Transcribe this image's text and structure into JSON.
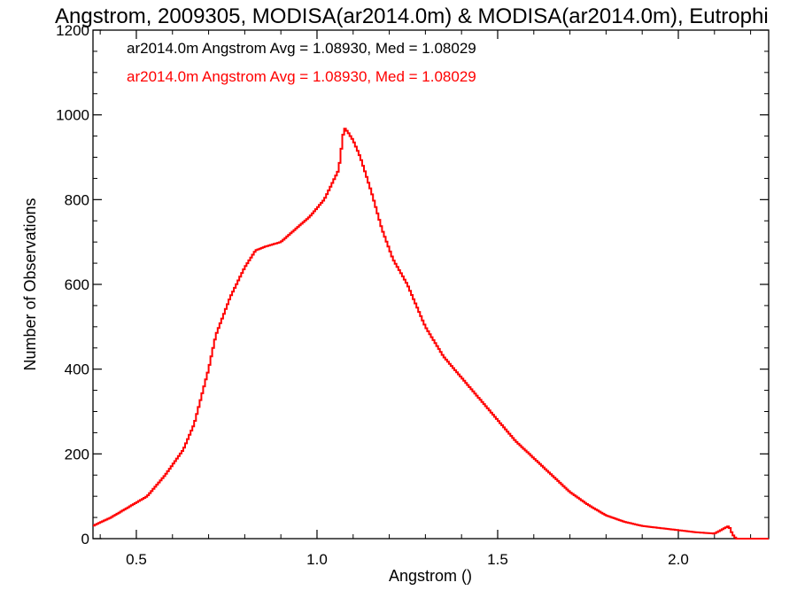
{
  "chart_data": {
    "type": "histogram",
    "title": "Angstrom, 2009305, MODISA(ar2014.0m) & MODISA(ar2014.0m), Eutrophi",
    "xlabel": "Angstrom ()",
    "ylabel": "Number of Observations",
    "xlim": [
      0.38,
      2.25
    ],
    "ylim": [
      0,
      1200
    ],
    "xticks": [
      0.5,
      1.0,
      1.5,
      2.0
    ],
    "xtick_labels": [
      "0.5",
      "1.0",
      "1.5",
      "2.0"
    ],
    "yticks": [
      0,
      200,
      400,
      600,
      800,
      1000,
      1200
    ],
    "ytick_labels": [
      "0",
      "200",
      "400",
      "600",
      "800",
      "1000",
      "1200"
    ],
    "legend": [
      {
        "text": "ar2014.0m Angstrom Avg = 1.08930, Med = 1.08029",
        "color": "#000000"
      },
      {
        "text": "ar2014.0m Angstrom Avg = 1.08930, Med = 1.08029",
        "color": "#ff0000"
      }
    ],
    "series": [
      {
        "color": "#ff0000",
        "bin_width": 0.01,
        "x": [
          0.38,
          0.43,
          0.48,
          0.53,
          0.58,
          0.63,
          0.66,
          0.7,
          0.72,
          0.76,
          0.8,
          0.83,
          0.86,
          0.9,
          0.94,
          0.98,
          1.02,
          1.06,
          1.075,
          1.085,
          1.1,
          1.12,
          1.15,
          1.18,
          1.21,
          1.25,
          1.3,
          1.35,
          1.4,
          1.45,
          1.5,
          1.55,
          1.6,
          1.65,
          1.7,
          1.75,
          1.8,
          1.85,
          1.9,
          1.95,
          2.0,
          2.05,
          2.1,
          2.14,
          2.15,
          2.16,
          2.2,
          2.25
        ],
        "y": [
          30,
          50,
          75,
          100,
          150,
          210,
          270,
          400,
          480,
          570,
          640,
          680,
          690,
          700,
          730,
          760,
          800,
          870,
          970,
          960,
          940,
          900,
          820,
          730,
          660,
          600,
          500,
          430,
          380,
          330,
          280,
          230,
          190,
          150,
          110,
          80,
          55,
          40,
          30,
          25,
          20,
          15,
          12,
          30,
          10,
          0,
          0,
          0
        ]
      }
    ]
  }
}
